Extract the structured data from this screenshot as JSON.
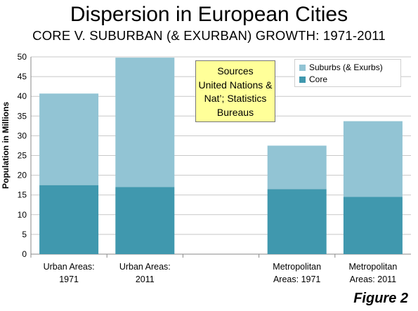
{
  "title": "Dispersion in European Cities",
  "subtitle": "CORE V. SUBURBAN (& EXURBAN) GROWTH: 1971-2011",
  "sources_box": [
    "Sources",
    "United Nations &",
    "Nat’; Statistics",
    "Bureaus"
  ],
  "figure_label": "Figure 2",
  "colors": {
    "core": "#4098ae",
    "suburbs": "#92c4d4",
    "grid": "#c8c8c8",
    "sources_bg": "#ffff99"
  },
  "chart_data": {
    "type": "bar",
    "stacked": true,
    "title": "Dispersion in European Cities",
    "subtitle": "CORE V. SUBURBAN (& EXURBAN) GROWTH: 1971-2011",
    "ylabel": "Population in Millions",
    "xlabel": "",
    "ylim": [
      0,
      50
    ],
    "yticks": [
      0,
      5,
      10,
      15,
      20,
      25,
      30,
      35,
      40,
      45,
      50
    ],
    "grid": true,
    "legend_position": "top-right",
    "categories": [
      [
        "Urban Areas:",
        "1971"
      ],
      [
        "Urban Areas:",
        "2011"
      ],
      [
        "",
        ""
      ],
      [
        "Metropolitan",
        "Areas: 1971"
      ],
      [
        "Metropolitan",
        "Areas: 2011"
      ]
    ],
    "series": [
      {
        "name": "Core",
        "values": [
          17.5,
          17.0,
          null,
          16.5,
          14.5
        ]
      },
      {
        "name": "Suburbs (& Exurbs)",
        "values": [
          23.2,
          32.8,
          null,
          11.0,
          19.2
        ]
      }
    ],
    "legend": [
      "Suburbs (& Exurbs)",
      "Core"
    ]
  }
}
